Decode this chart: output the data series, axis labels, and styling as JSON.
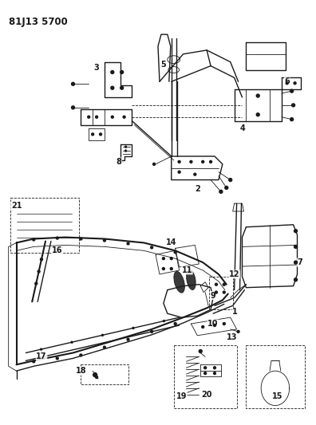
{
  "title": "81J13 5700",
  "bg_color": "#ffffff",
  "line_color": "#1a1a1a",
  "fig_width": 3.96,
  "fig_height": 5.33,
  "dpi": 100
}
